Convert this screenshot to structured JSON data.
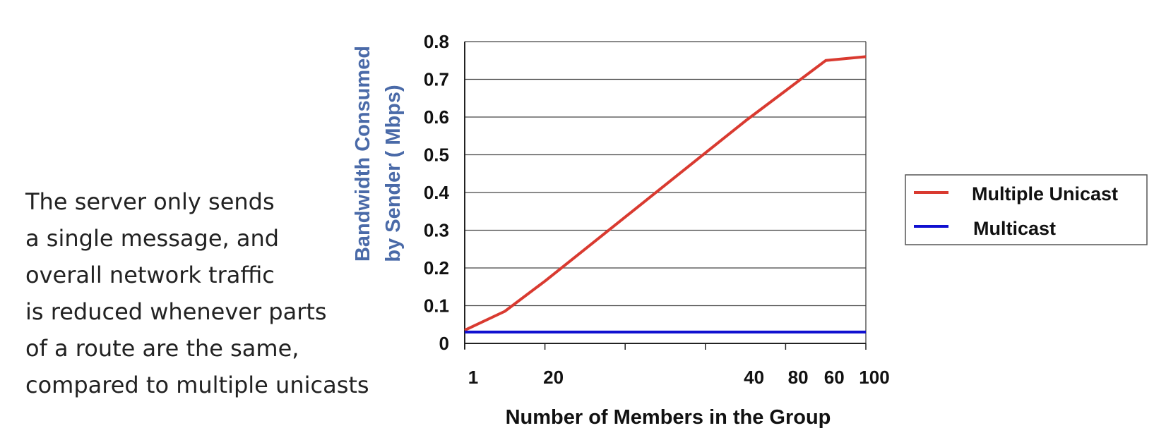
{
  "caption": {
    "lines": [
      "The server only sends",
      "a single message, and",
      "overall network traffic",
      "is reduced whenever parts",
      "of a route are the same,",
      "compared to multiple unicasts"
    ]
  },
  "chart_data": {
    "type": "line",
    "xlabel": "Number of Members in the Group",
    "ylabel_lines": [
      "Bandwidth Consumed",
      "by Sender  ( Mbps)"
    ],
    "ylim": [
      0,
      0.8
    ],
    "y_ticks": [
      "0.8",
      "0.7",
      "0.6",
      "0.5",
      "0.4",
      "0.3",
      "0.2",
      "0.1",
      "0"
    ],
    "y_tick_values": [
      0.8,
      0.7,
      0.6,
      0.5,
      0.4,
      0.3,
      0.2,
      0.1,
      0
    ],
    "x_tick_labels": [
      "1",
      "20",
      "40",
      "80",
      "60",
      "100"
    ],
    "x_tick_positions": [
      0,
      0.2,
      0.7,
      0.81,
      0.9,
      1.0
    ],
    "x_minor_ticks": [
      0,
      0.2,
      0.4,
      0.6,
      0.8,
      1.0
    ],
    "grid": true,
    "legend_position": "right",
    "series": [
      {
        "name": "Multiple Unicast",
        "color": "#d93a30",
        "points": [
          [
            0,
            0.035
          ],
          [
            0.1,
            0.085
          ],
          [
            0.2,
            0.165
          ],
          [
            0.3,
            0.25
          ],
          [
            0.4,
            0.335
          ],
          [
            0.5,
            0.42
          ],
          [
            0.6,
            0.505
          ],
          [
            0.7,
            0.59
          ],
          [
            0.8,
            0.67
          ],
          [
            0.9,
            0.75
          ],
          [
            1.0,
            0.76
          ]
        ]
      },
      {
        "name": "Multicast",
        "color": "#1010d0",
        "points": [
          [
            0,
            0.03
          ],
          [
            1.0,
            0.03
          ]
        ]
      }
    ]
  }
}
